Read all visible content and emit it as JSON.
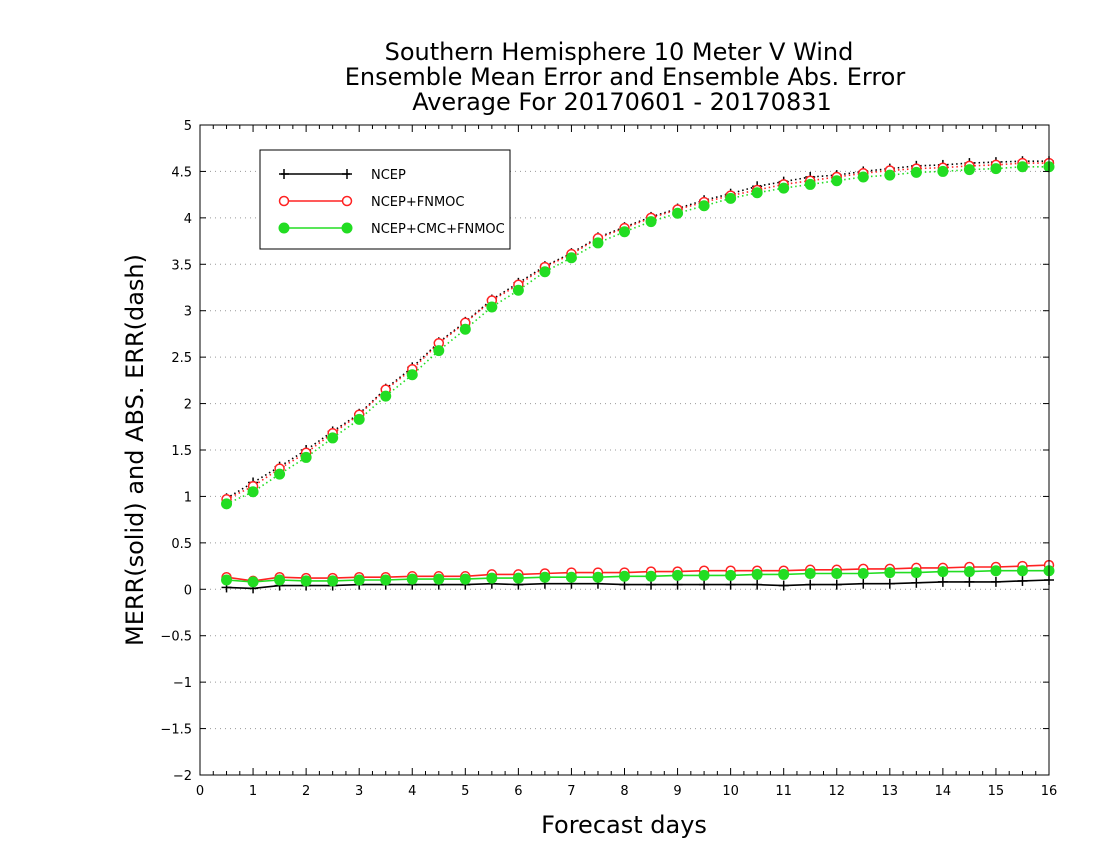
{
  "chart_data": {
    "type": "line",
    "title_lines": [
      "Southern Hemisphere 10 Meter V Wind",
      "Ensemble Mean Error and Ensemble Abs. Error",
      "Average For 20170601 - 20170831"
    ],
    "xlabel": "Forecast days",
    "ylabel": "MERR(solid) and ABS. ERR(dash)",
    "xlim": [
      0,
      16
    ],
    "ylim": [
      -2,
      5
    ],
    "xticks": [
      "0",
      "1",
      "2",
      "3",
      "4",
      "5",
      "6",
      "7",
      "8",
      "9",
      "10",
      "11",
      "12",
      "13",
      "14",
      "15",
      "16"
    ],
    "yticks": [
      "5",
      "4.5",
      "4",
      "3.5",
      "3",
      "2.5",
      "2",
      "1.5",
      "1",
      "0.5",
      "0",
      "−0.5",
      "−1",
      "−1.5",
      "−2"
    ],
    "ytick_values": [
      5,
      4.5,
      4,
      3.5,
      3,
      2.5,
      2,
      1.5,
      1,
      0.5,
      0,
      -0.5,
      -1,
      -1.5,
      -2
    ],
    "grid": "horizontal dotted",
    "legend_position": "top-left",
    "x": [
      0.5,
      1,
      1.5,
      2,
      2.5,
      3,
      3.5,
      4,
      4.5,
      5,
      5.5,
      6,
      6.5,
      7,
      7.5,
      8,
      8.5,
      9,
      9.5,
      10,
      10.5,
      11,
      11.5,
      12,
      12.5,
      13,
      13.5,
      14,
      14.5,
      15,
      15.5,
      16
    ],
    "series": [
      {
        "name": "NCEP",
        "color": "#000000",
        "marker": "plus",
        "merr": [
          0.02,
          0.01,
          0.04,
          0.04,
          0.04,
          0.05,
          0.05,
          0.05,
          0.05,
          0.05,
          0.06,
          0.05,
          0.06,
          0.06,
          0.06,
          0.05,
          0.05,
          0.05,
          0.05,
          0.05,
          0.05,
          0.04,
          0.05,
          0.05,
          0.06,
          0.06,
          0.07,
          0.08,
          0.08,
          0.08,
          0.09,
          0.1
        ],
        "abs_err": [
          0.98,
          1.15,
          1.32,
          1.5,
          1.7,
          1.89,
          2.16,
          2.39,
          2.66,
          2.88,
          3.12,
          3.3,
          3.48,
          3.62,
          3.79,
          3.9,
          4.01,
          4.1,
          4.19,
          4.26,
          4.34,
          4.39,
          4.44,
          4.46,
          4.5,
          4.53,
          4.56,
          4.57,
          4.59,
          4.6,
          4.61,
          4.61
        ]
      },
      {
        "name": "NCEP+FNMOC",
        "color": "#ff2222",
        "marker": "open-circle",
        "merr": [
          0.13,
          0.09,
          0.13,
          0.12,
          0.12,
          0.13,
          0.13,
          0.14,
          0.14,
          0.14,
          0.16,
          0.16,
          0.17,
          0.18,
          0.18,
          0.18,
          0.19,
          0.19,
          0.2,
          0.2,
          0.2,
          0.2,
          0.21,
          0.21,
          0.22,
          0.22,
          0.23,
          0.23,
          0.24,
          0.24,
          0.25,
          0.26
        ],
        "abs_err": [
          0.97,
          1.11,
          1.3,
          1.47,
          1.68,
          1.88,
          2.15,
          2.37,
          2.65,
          2.87,
          3.11,
          3.28,
          3.47,
          3.61,
          3.78,
          3.89,
          4.0,
          4.09,
          4.17,
          4.24,
          4.3,
          4.36,
          4.4,
          4.44,
          4.48,
          4.51,
          4.53,
          4.54,
          4.56,
          4.57,
          4.59,
          4.59
        ]
      },
      {
        "name": "NCEP+CMC+FNMOC",
        "color": "#22dd22",
        "marker": "filled-circle",
        "merr": [
          0.1,
          0.08,
          0.1,
          0.09,
          0.09,
          0.1,
          0.1,
          0.11,
          0.11,
          0.11,
          0.12,
          0.12,
          0.13,
          0.13,
          0.13,
          0.14,
          0.14,
          0.15,
          0.15,
          0.15,
          0.16,
          0.16,
          0.17,
          0.17,
          0.17,
          0.18,
          0.18,
          0.19,
          0.19,
          0.2,
          0.2,
          0.2
        ],
        "abs_err": [
          0.92,
          1.05,
          1.24,
          1.42,
          1.63,
          1.83,
          2.08,
          2.31,
          2.57,
          2.8,
          3.04,
          3.22,
          3.42,
          3.57,
          3.73,
          3.85,
          3.96,
          4.05,
          4.13,
          4.21,
          4.27,
          4.32,
          4.36,
          4.4,
          4.44,
          4.46,
          4.49,
          4.5,
          4.52,
          4.53,
          4.55,
          4.55
        ]
      }
    ]
  }
}
